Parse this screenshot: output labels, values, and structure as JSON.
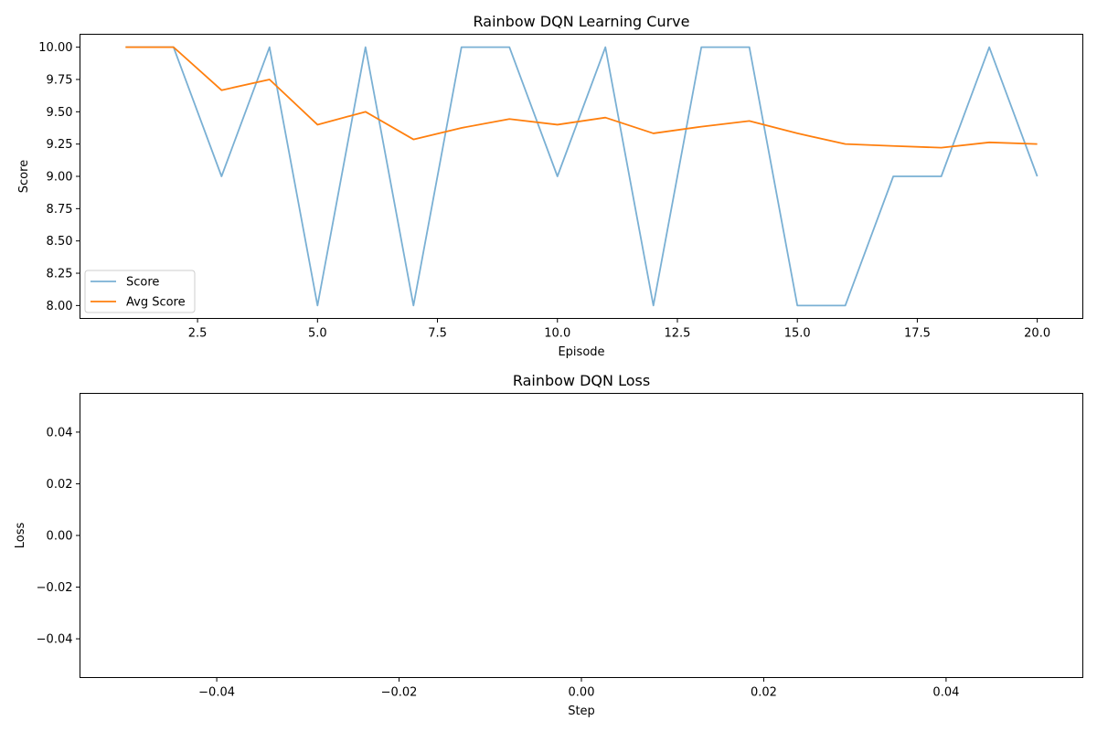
{
  "chart_data": [
    {
      "type": "line",
      "title": "Rainbow DQN Learning Curve",
      "xlabel": "Episode",
      "ylabel": "Score",
      "xlim": [
        0.05,
        20.95
      ],
      "ylim": [
        7.9,
        10.1
      ],
      "xticks": [
        2.5,
        5.0,
        7.5,
        10.0,
        12.5,
        15.0,
        17.5,
        20.0
      ],
      "xtick_labels": [
        "2.5",
        "5.0",
        "7.5",
        "10.0",
        "12.5",
        "15.0",
        "17.5",
        "20.0"
      ],
      "yticks": [
        8.0,
        8.25,
        8.5,
        8.75,
        9.0,
        9.25,
        9.5,
        9.75,
        10.0
      ],
      "ytick_labels": [
        "8.00",
        "8.25",
        "8.50",
        "8.75",
        "9.00",
        "9.25",
        "9.50",
        "9.75",
        "10.00"
      ],
      "grid": false,
      "legend": "lower-left",
      "x": [
        1,
        2,
        3,
        4,
        5,
        6,
        7,
        8,
        9,
        10,
        11,
        12,
        13,
        14,
        15,
        16,
        17,
        18,
        19,
        20
      ],
      "series": [
        {
          "name": "Score",
          "color": "#7ab0d4",
          "values": [
            10,
            10,
            9,
            10,
            8,
            10,
            8,
            10,
            10,
            9,
            10,
            8,
            10,
            10,
            8,
            8,
            9,
            9,
            10,
            9
          ]
        },
        {
          "name": "Avg Score",
          "color": "#ff7f0e",
          "values": [
            10.0,
            10.0,
            9.667,
            9.75,
            9.4,
            9.5,
            9.286,
            9.375,
            9.444,
            9.4,
            9.455,
            9.333,
            9.385,
            9.429,
            9.333,
            9.25,
            9.235,
            9.222,
            9.263,
            9.25
          ]
        }
      ]
    },
    {
      "type": "line",
      "title": "Rainbow DQN Loss",
      "xlabel": "Step",
      "ylabel": "Loss",
      "xlim": [
        -0.055,
        0.055
      ],
      "ylim": [
        -0.055,
        0.055
      ],
      "xticks": [
        -0.04,
        -0.02,
        0.0,
        0.02,
        0.04
      ],
      "xtick_labels": [
        "−0.04",
        "−0.02",
        "0.00",
        "0.02",
        "0.04"
      ],
      "yticks": [
        -0.04,
        -0.02,
        0.0,
        0.02,
        0.04
      ],
      "ytick_labels": [
        "−0.04",
        "−0.02",
        "0.00",
        "0.02",
        "0.04"
      ],
      "grid": false,
      "x": [],
      "series": []
    }
  ]
}
